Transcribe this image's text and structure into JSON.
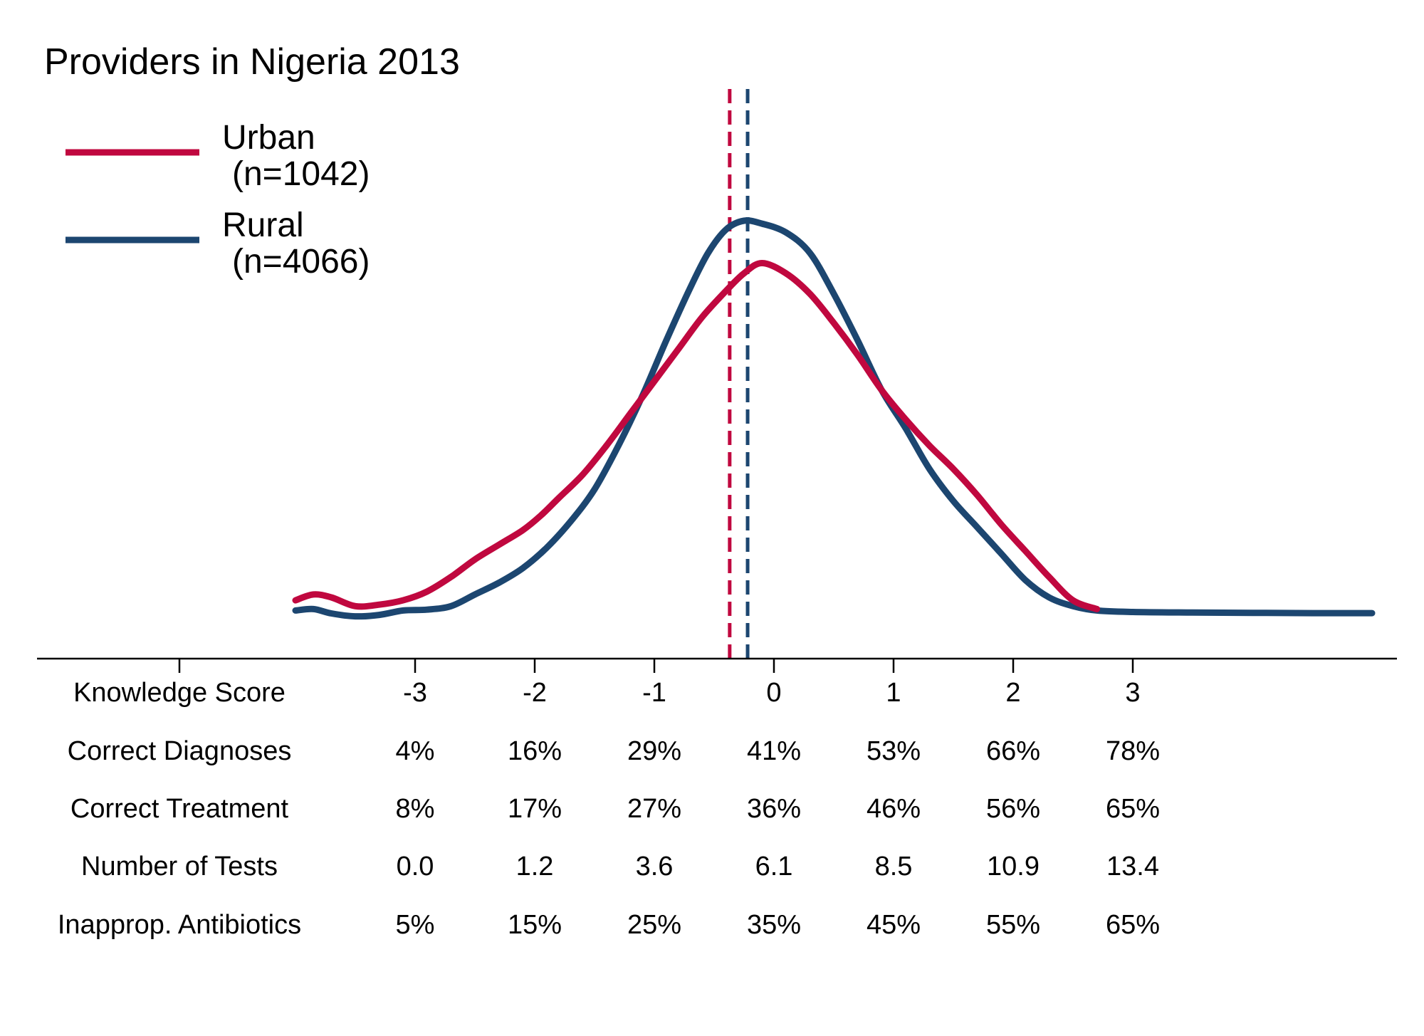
{
  "chart_data": {
    "type": "line",
    "title": "Providers in Nigeria 2013",
    "xlabel": "",
    "ylabel": "",
    "xlim": [
      -4.04,
      5.0
    ],
    "grid": false,
    "legend_position": "top-left",
    "series": [
      {
        "name": "Urban",
        "name_line2": "(n=1042)",
        "color": "#c0083f",
        "mean": -0.37,
        "points": [
          [
            -4.0,
            0.09
          ],
          [
            -3.85,
            0.11
          ],
          [
            -3.7,
            0.1
          ],
          [
            -3.5,
            0.07
          ],
          [
            -3.3,
            0.075
          ],
          [
            -3.1,
            0.09
          ],
          [
            -2.9,
            0.12
          ],
          [
            -2.7,
            0.17
          ],
          [
            -2.5,
            0.23
          ],
          [
            -2.3,
            0.28
          ],
          [
            -2.1,
            0.33
          ],
          [
            -1.95,
            0.38
          ],
          [
            -1.8,
            0.44
          ],
          [
            -1.6,
            0.52
          ],
          [
            -1.4,
            0.62
          ],
          [
            -1.2,
            0.73
          ],
          [
            -1.0,
            0.84
          ],
          [
            -0.8,
            0.95
          ],
          [
            -0.6,
            1.06
          ],
          [
            -0.4,
            1.15
          ],
          [
            -0.25,
            1.21
          ],
          [
            -0.1,
            1.245
          ],
          [
            0.1,
            1.21
          ],
          [
            0.3,
            1.14
          ],
          [
            0.5,
            1.04
          ],
          [
            0.7,
            0.93
          ],
          [
            0.9,
            0.81
          ],
          [
            1.1,
            0.71
          ],
          [
            1.3,
            0.62
          ],
          [
            1.5,
            0.54
          ],
          [
            1.7,
            0.45
          ],
          [
            1.9,
            0.35
          ],
          [
            2.1,
            0.26
          ],
          [
            2.3,
            0.17
          ],
          [
            2.5,
            0.09
          ],
          [
            2.7,
            0.06
          ]
        ]
      },
      {
        "name": "Rural",
        "name_line2": "(n=4066)",
        "color": "#1c4670",
        "mean": -0.22,
        "points": [
          [
            -4.0,
            0.055
          ],
          [
            -3.85,
            0.06
          ],
          [
            -3.7,
            0.045
          ],
          [
            -3.5,
            0.035
          ],
          [
            -3.3,
            0.04
          ],
          [
            -3.1,
            0.055
          ],
          [
            -2.9,
            0.058
          ],
          [
            -2.7,
            0.07
          ],
          [
            -2.5,
            0.11
          ],
          [
            -2.3,
            0.15
          ],
          [
            -2.1,
            0.2
          ],
          [
            -1.9,
            0.27
          ],
          [
            -1.7,
            0.36
          ],
          [
            -1.5,
            0.47
          ],
          [
            -1.3,
            0.62
          ],
          [
            -1.1,
            0.79
          ],
          [
            -0.9,
            0.98
          ],
          [
            -0.7,
            1.16
          ],
          [
            -0.55,
            1.28
          ],
          [
            -0.4,
            1.36
          ],
          [
            -0.25,
            1.39
          ],
          [
            -0.1,
            1.38
          ],
          [
            0.1,
            1.35
          ],
          [
            0.3,
            1.28
          ],
          [
            0.5,
            1.14
          ],
          [
            0.7,
            0.98
          ],
          [
            0.9,
            0.81
          ],
          [
            1.1,
            0.68
          ],
          [
            1.3,
            0.54
          ],
          [
            1.5,
            0.43
          ],
          [
            1.7,
            0.34
          ],
          [
            1.9,
            0.25
          ],
          [
            2.1,
            0.16
          ],
          [
            2.3,
            0.1
          ],
          [
            2.5,
            0.07
          ],
          [
            2.7,
            0.055
          ],
          [
            3.0,
            0.05
          ],
          [
            3.5,
            0.048
          ],
          [
            4.0,
            0.047
          ],
          [
            4.5,
            0.046
          ],
          [
            5.0,
            0.046
          ]
        ]
      }
    ],
    "table": {
      "header_label": "Knowledge Score",
      "ticks": [
        -3,
        -2,
        -1,
        0,
        1,
        2,
        3
      ],
      "tick_labels": [
        "-3",
        "-2",
        "-1",
        "0",
        "1",
        "2",
        "3"
      ],
      "rows": [
        {
          "label": "Correct Diagnoses",
          "values": [
            "4%",
            "16%",
            "29%",
            "41%",
            "53%",
            "66%",
            "78%"
          ]
        },
        {
          "label": "Correct Treatment",
          "values": [
            "8%",
            "17%",
            "27%",
            "36%",
            "46%",
            "56%",
            "65%"
          ]
        },
        {
          "label": "Number of Tests",
          "values": [
            "0.0",
            "1.2",
            "3.6",
            "6.1",
            "8.5",
            "10.9",
            "13.4"
          ]
        },
        {
          "label": "Inapprop. Antibiotics",
          "values": [
            "5%",
            "15%",
            "25%",
            "35%",
            "45%",
            "55%",
            "65%"
          ]
        }
      ]
    }
  }
}
